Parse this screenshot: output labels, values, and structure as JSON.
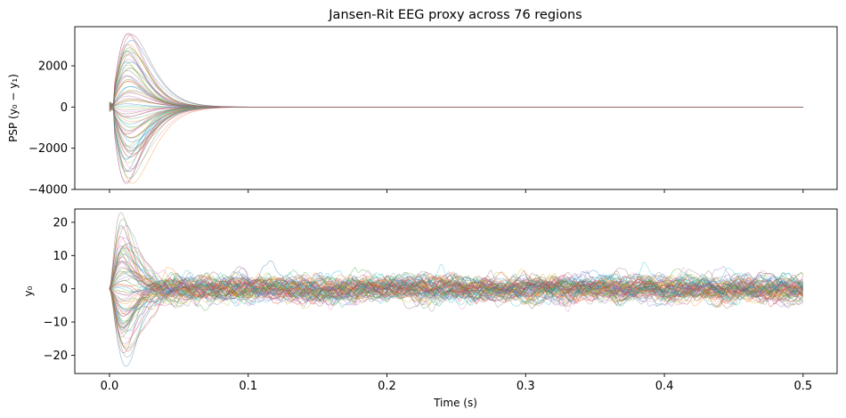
{
  "figure": {
    "title": "Jansen-Rit EEG proxy across 76 regions"
  },
  "chart_data": [
    {
      "type": "line",
      "title": "Jansen-Rit EEG proxy across 76 regions",
      "xlabel": "",
      "ylabel": "PSP (y₀ − y₁)",
      "xlim": [
        -0.025,
        0.5245
      ],
      "ylim": [
        -4000,
        3900
      ],
      "xticks": [
        0.0,
        0.1,
        0.2,
        0.3,
        0.4,
        0.5
      ],
      "xticks_labeled": false,
      "yticks": [
        -4000,
        -2000,
        0,
        2000
      ],
      "ytick_labels": [
        "−4000",
        "−2000",
        "0",
        "2000"
      ],
      "series_count": 76,
      "series_description_values": {
        "start_value": 0,
        "peak_time_s": 0.014,
        "peak_amplitude_range": [
          -3650,
          3500
        ],
        "settle_time_s": 0.15,
        "final_value": 0
      }
    },
    {
      "type": "line",
      "title": "",
      "xlabel": "Time (s)",
      "ylabel": "y₀",
      "xlim": [
        -0.025,
        0.5245
      ],
      "ylim": [
        -25.5,
        24
      ],
      "xticks": [
        0.0,
        0.1,
        0.2,
        0.3,
        0.4,
        0.5
      ],
      "xtick_labels": [
        "0.0",
        "0.1",
        "0.2",
        "0.3",
        "0.4",
        "0.5"
      ],
      "yticks": [
        -20,
        -10,
        0,
        10,
        20
      ],
      "ytick_labels": [
        "−20",
        "−10",
        "0",
        "10",
        "20"
      ],
      "series_count": 76,
      "series_description_values": {
        "start_value": 0,
        "peak_time_s": 0.01,
        "peak_amplitude_range": [
          -23,
          21.5
        ],
        "noise_band": [
          -7,
          7
        ]
      }
    }
  ],
  "colors": [
    "#1f77b4",
    "#ff7f0e",
    "#2ca02c",
    "#d62728",
    "#9467bd",
    "#8c564b",
    "#e377c2",
    "#7f7f7f",
    "#bcbd22",
    "#17becf"
  ]
}
